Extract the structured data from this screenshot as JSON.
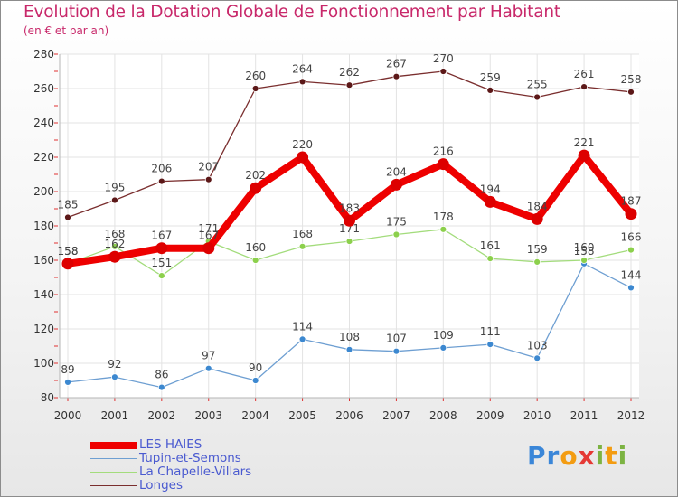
{
  "chart_data": {
    "type": "line",
    "title": "Evolution de la Dotation Globale de Fonctionnement par Habitant",
    "subtitle": "(en € et par an)",
    "xlabel": "",
    "ylabel": "",
    "ylim": [
      80,
      280
    ],
    "yticks": [
      80,
      100,
      120,
      140,
      160,
      180,
      200,
      220,
      240,
      260,
      280
    ],
    "grid": true,
    "categories": [
      "2000",
      "2001",
      "2002",
      "2003",
      "2004",
      "2005",
      "2006",
      "2007",
      "2008",
      "2009",
      "2010",
      "2011",
      "2012"
    ],
    "series": [
      {
        "name": "LES HAIES",
        "color": "#ee0000",
        "marker": "#dd0000",
        "values": [
          158,
          162,
          167,
          167,
          202,
          220,
          183,
          204,
          216,
          194,
          184,
          221,
          187
        ]
      },
      {
        "name": "Tupin-et-Semons",
        "color": "#6e9fd2",
        "marker": "#3c88d0",
        "values": [
          89,
          92,
          86,
          97,
          90,
          114,
          108,
          107,
          109,
          111,
          103,
          158,
          144
        ]
      },
      {
        "name": "La Chapelle-Villars",
        "color": "#a3dc7c",
        "marker": "#8cd04c",
        "values": [
          158,
          168,
          151,
          171,
          160,
          168,
          171,
          175,
          178,
          161,
          159,
          160,
          166
        ]
      },
      {
        "name": "Longes",
        "color": "#7a2e2e",
        "marker": "#5c1818",
        "values": [
          185,
          195,
          206,
          207,
          260,
          264,
          262,
          267,
          270,
          259,
          255,
          261,
          258
        ]
      }
    ],
    "legend_position": "bottom-left"
  },
  "logo": {
    "letters": [
      {
        "ch": "P",
        "color": "#3a86d8"
      },
      {
        "ch": "r",
        "color": "#3a86d8"
      },
      {
        "ch": "o",
        "color": "#f39c12"
      },
      {
        "ch": "x",
        "color": "#e53935"
      },
      {
        "ch": "i",
        "color": "#7cb342"
      },
      {
        "ch": "t",
        "color": "#f39c12"
      },
      {
        "ch": "i",
        "color": "#7cb342"
      }
    ]
  }
}
